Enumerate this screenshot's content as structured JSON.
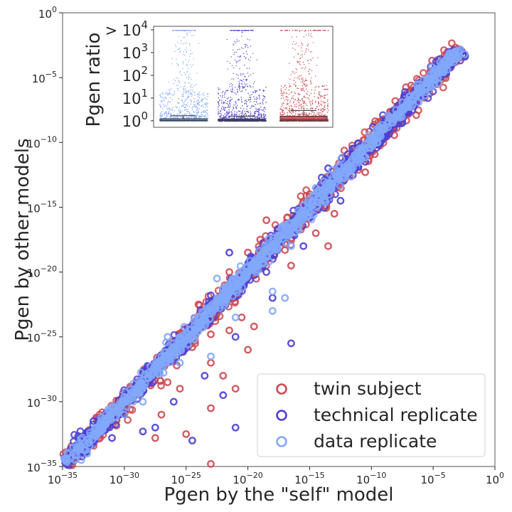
{
  "chart_data": [
    {
      "type": "scatter",
      "xlabel": "Pgen by the \"self\" model",
      "ylabel": "Pgen by other models",
      "xscale": "log",
      "yscale": "log",
      "xlim": [
        "1e-35",
        "1e0"
      ],
      "ylim": [
        "1e-35",
        "1e0"
      ],
      "x_ticks": [
        {
          "base": "10",
          "exp": "−35"
        },
        {
          "base": "10",
          "exp": "−30"
        },
        {
          "base": "10",
          "exp": "−25"
        },
        {
          "base": "10",
          "exp": "−20"
        },
        {
          "base": "10",
          "exp": "−15"
        },
        {
          "base": "10",
          "exp": "−10"
        },
        {
          "base": "10",
          "exp": "−5"
        },
        {
          "base": "10",
          "exp": "0"
        }
      ],
      "y_ticks": [
        {
          "base": "10",
          "exp": "−35"
        },
        {
          "base": "10",
          "exp": "−30"
        },
        {
          "base": "10",
          "exp": "−25"
        },
        {
          "base": "10",
          "exp": "−20"
        },
        {
          "base": "10",
          "exp": "−15"
        },
        {
          "base": "10",
          "exp": "−10"
        },
        {
          "base": "10",
          "exp": "−5"
        },
        {
          "base": "10",
          "exp": "0"
        }
      ],
      "legend_position": "bottom-right",
      "grid": false,
      "series": [
        {
          "name": "twin subject",
          "color": "#cc4a52",
          "outliers_log10": [
            [
              -13.0,
              -15.5
            ],
            [
              -12.0,
              -12.5
            ],
            [
              -10.5,
              -12.3
            ],
            [
              -13.5,
              -18.0
            ],
            [
              -19.0,
              -17.5
            ],
            [
              -20.0,
              -18.5
            ],
            [
              -16.5,
              -19.5
            ],
            [
              -21.5,
              -20.0
            ],
            [
              -22.0,
              -21.5
            ],
            [
              -24.0,
              -22.5
            ],
            [
              -20.5,
              -23.5
            ],
            [
              -19.5,
              -24.2
            ],
            [
              -21.5,
              -24.5
            ],
            [
              -23.0,
              -24.8
            ],
            [
              -24.5,
              -25.8
            ],
            [
              -23.0,
              -27.0
            ],
            [
              -22.0,
              -28.0
            ],
            [
              -25.5,
              -29.0
            ],
            [
              -26.5,
              -28.5
            ],
            [
              -27.0,
              -31.0
            ],
            [
              -25.0,
              -32.5
            ],
            [
              -27.5,
              -32.8
            ],
            [
              -21.0,
              -29.0
            ],
            [
              -23.0,
              -30.5
            ],
            [
              -23.0,
              -34.8
            ],
            [
              -20.0,
              -26.0
            ],
            [
              -17.0,
              -18.3
            ],
            [
              -14.5,
              -17.0
            ],
            [
              -29.0,
              -28.5
            ],
            [
              -30.5,
              -30.5
            ],
            [
              -17.5,
              -17.5
            ],
            [
              -11.5,
              -10.5
            ],
            [
              -18.5,
              -16.0
            ],
            [
              -15.0,
              -14.0
            ],
            [
              -9.0,
              -9.0
            ],
            [
              -7.5,
              -8.0
            ]
          ]
        },
        {
          "name": "technical replicate",
          "color": "#4a3fd6",
          "outliers_log10": [
            [
              -21.5,
              -18.5
            ],
            [
              -18.0,
              -22.0
            ],
            [
              -16.5,
              -25.5
            ],
            [
              -21.0,
              -25.0
            ],
            [
              -22.0,
              -29.5
            ],
            [
              -23.5,
              -28.0
            ],
            [
              -28.5,
              -32.3
            ],
            [
              -24.5,
              -33.0
            ],
            [
              -21.0,
              -32.0
            ],
            [
              -31.0,
              -32.8
            ],
            [
              -32.5,
              -31.5
            ],
            [
              -29.5,
              -29.5
            ],
            [
              -26.5,
              -26.0
            ],
            [
              -18.5,
              -20.0
            ],
            [
              -15.5,
              -18.0
            ],
            [
              -12.5,
              -14.5
            ],
            [
              -13.5,
              -12.0
            ],
            [
              -27.5,
              -32.0
            ],
            [
              -19.5,
              -19.8
            ],
            [
              -23.0,
              -21.8
            ],
            [
              -10.5,
              -11.5
            ],
            [
              -26.0,
              -30.0
            ]
          ]
        },
        {
          "name": "data replicate",
          "color": "#82a8fa",
          "outliers_log10": [
            [
              -11.0,
              -10.5
            ],
            [
              -14.5,
              -13.5
            ],
            [
              -16.5,
              -18.0
            ],
            [
              -18.0,
              -21.5
            ],
            [
              -17.0,
              -22.0
            ],
            [
              -18.0,
              -23.0
            ],
            [
              -21.0,
              -23.5
            ],
            [
              -24.0,
              -23.5
            ],
            [
              -26.5,
              -25.0
            ],
            [
              -27.0,
              -26.5
            ],
            [
              -28.5,
              -30.0
            ],
            [
              -29.0,
              -29.5
            ],
            [
              -31.5,
              -31.5
            ],
            [
              -33.5,
              -34.5
            ],
            [
              -33.0,
              -34.0
            ],
            [
              -23.0,
              -26.5
            ],
            [
              -9.5,
              -10.0
            ],
            [
              -22.5,
              -20.5
            ],
            [
              -25.5,
              -27.0
            ],
            [
              -30.0,
              -31.0
            ]
          ]
        }
      ]
    },
    {
      "type": "strip",
      "title": "",
      "ylabel": "Pgen ratio",
      "yscale": "log",
      "y_ticks": [
        {
          "prefix": "> ",
          "base": "10",
          "exp": "4"
        },
        {
          "prefix": "",
          "base": "10",
          "exp": "3"
        },
        {
          "prefix": "",
          "base": "10",
          "exp": "2"
        },
        {
          "prefix": "",
          "base": "10",
          "exp": "1"
        },
        {
          "prefix": "",
          "base": "10",
          "exp": "0"
        }
      ],
      "categories": [
        "twin subject",
        "technical replicate",
        "data replicate"
      ],
      "category_order_shown": [
        "data replicate",
        "technical replicate",
        "twin subject"
      ],
      "series": [
        {
          "name": "data replicate",
          "color": "#82a8fa",
          "median_log10": 0.03,
          "q3_log10": 0.09,
          "whisker_log10": 0.22,
          "dense_top_log10": 1.3,
          "max_log10": 4.0
        },
        {
          "name": "technical replicate",
          "color": "#4a3fd6",
          "median_log10": 0.03,
          "q3_log10": 0.08,
          "whisker_log10": 0.2,
          "dense_top_log10": 1.5,
          "max_log10": 4.0
        },
        {
          "name": "twin subject",
          "color": "#cc4a52",
          "median_log10": 0.05,
          "q3_log10": 0.2,
          "whisker_log10": 0.45,
          "dense_top_log10": 1.6,
          "max_log10": 4.0
        }
      ]
    }
  ]
}
